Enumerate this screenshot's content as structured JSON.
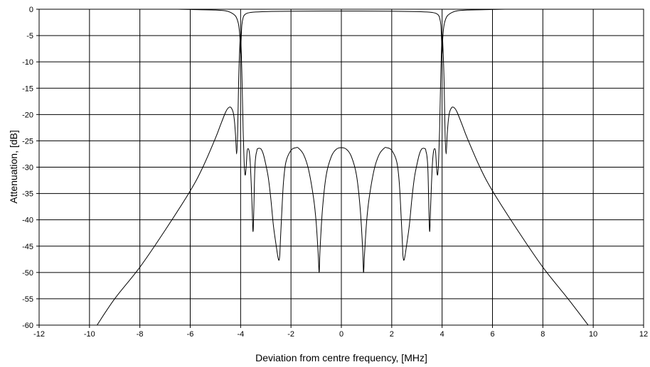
{
  "chart_data": {
    "type": "line",
    "title": "",
    "xlabel": "Deviation from centre frequency, [MHz]",
    "ylabel": "Attenuation, [dB]",
    "xlim": [
      -12,
      12
    ],
    "ylim": [
      -60,
      0
    ],
    "xticks": [
      "-12",
      "-10",
      "-8",
      "-6",
      "-4",
      "-2",
      "0",
      "2",
      "4",
      "6",
      "8",
      "10",
      "12"
    ],
    "yticks": [
      "0",
      "-5",
      "-10",
      "-15",
      "-20",
      "-25",
      "-30",
      "-35",
      "-40",
      "-45",
      "-50",
      "-55",
      "-60"
    ],
    "grid": true,
    "legend": "none",
    "line_color": "#000000",
    "series": [
      {
        "x": [
          -9.7,
          -9.0,
          -8.0,
          -7.0,
          -6.0,
          -5.5,
          -5.0,
          -4.8,
          -4.6,
          -4.5,
          -4.4,
          -4.3,
          -4.25,
          -4.2,
          -4.16,
          -4.12,
          -4.08,
          -4.04,
          -4.0,
          -3.95,
          -3.9,
          -3.86,
          -3.82,
          -3.78,
          -3.74,
          -3.7,
          -3.66,
          -3.62,
          -3.58,
          -3.54,
          -3.5,
          -3.44,
          -3.4,
          -3.36,
          -3.33,
          -3.2,
          -3.1,
          -3.0,
          -2.9,
          -2.8,
          -2.7,
          -2.6,
          -2.5,
          -2.45,
          -2.42,
          -2.38,
          -2.3,
          -2.2,
          -2.0,
          -1.8,
          -1.7,
          -1.5,
          -1.3,
          -1.1,
          -1.0,
          -0.92,
          -0.88,
          -0.85,
          -0.75,
          -0.6,
          -0.4,
          -0.2,
          0.0,
          0.2,
          0.4,
          0.6,
          0.75,
          0.85,
          0.88,
          0.92,
          1.0,
          1.1,
          1.3,
          1.5,
          1.7,
          1.8,
          2.0,
          2.2,
          2.3,
          2.38,
          2.42,
          2.45,
          2.5,
          2.6,
          2.7,
          2.8,
          2.9,
          3.0,
          3.1,
          3.2,
          3.33,
          3.36,
          3.4,
          3.44,
          3.5,
          3.54,
          3.58,
          3.62,
          3.66,
          3.7,
          3.74,
          3.78,
          3.82,
          3.86,
          3.9,
          3.95,
          4.0,
          4.04,
          4.08,
          4.12,
          4.16,
          4.2,
          4.25,
          4.3,
          4.4,
          4.5,
          4.6,
          4.8,
          5.0,
          5.5,
          6.0,
          7.0,
          8.0,
          9.0,
          9.8
        ],
        "y": [
          -60.0,
          -55.0,
          -49.0,
          -42.0,
          -34.5,
          -30.0,
          -24.5,
          -22.0,
          -19.6,
          -18.8,
          -18.6,
          -19.5,
          -21.0,
          -24.0,
          -27.5,
          -24.0,
          -14.0,
          -8.0,
          -5.0,
          -12.0,
          -23.0,
          -29.0,
          -31.5,
          -30.0,
          -27.0,
          -26.5,
          -27.0,
          -29.0,
          -33.0,
          -38.0,
          -42.0,
          -31.0,
          -28.0,
          -27.0,
          -26.5,
          -26.5,
          -27.5,
          -29.5,
          -32.0,
          -36.0,
          -41.0,
          -44.5,
          -47.5,
          -47.0,
          -44.0,
          -40.0,
          -33.0,
          -29.0,
          -26.8,
          -26.3,
          -26.4,
          -27.6,
          -30.5,
          -36.0,
          -40.5,
          -46.5,
          -50.0,
          -46.0,
          -38.0,
          -31.5,
          -28.0,
          -26.6,
          -26.3,
          -26.6,
          -28.0,
          -31.5,
          -38.0,
          -46.0,
          -50.0,
          -46.5,
          -40.5,
          -36.0,
          -30.5,
          -27.6,
          -26.4,
          -26.3,
          -26.8,
          -29.0,
          -33.0,
          -40.0,
          -44.0,
          -47.0,
          -47.5,
          -44.5,
          -41.0,
          -36.0,
          -32.0,
          -29.5,
          -27.5,
          -26.5,
          -26.5,
          -27.0,
          -28.0,
          -31.0,
          -42.0,
          -38.0,
          -33.0,
          -29.0,
          -27.0,
          -26.5,
          -27.0,
          -30.0,
          -31.5,
          -29.0,
          -23.0,
          -12.0,
          -5.0,
          -8.0,
          -14.0,
          -24.0,
          -27.5,
          -24.0,
          -21.0,
          -19.5,
          -18.6,
          -18.8,
          -19.6,
          -22.0,
          -24.5,
          -30.0,
          -34.5,
          -42.0,
          -49.0,
          -55.0,
          -60.0
        ]
      },
      {
        "x": [
          -6.5,
          -6.0,
          -5.0,
          -4.6,
          -4.4,
          -4.2,
          -4.1,
          -4.05,
          -4.02,
          -4.0,
          -3.98,
          -3.95,
          -3.9,
          -3.85,
          -3.8,
          -3.7,
          -3.5,
          -3.0,
          -2.0,
          0.0,
          2.0,
          3.0,
          3.5,
          3.7,
          3.8,
          3.85,
          3.9,
          3.95,
          3.98,
          4.0,
          4.02,
          4.05,
          4.1,
          4.2,
          4.4,
          4.6,
          5.0,
          6.0,
          6.5
        ],
        "y": [
          0.0,
          -0.05,
          -0.15,
          -0.3,
          -0.6,
          -1.3,
          -2.5,
          -4.0,
          -6.0,
          -8.5,
          -6.0,
          -3.0,
          -1.6,
          -1.1,
          -0.9,
          -0.7,
          -0.55,
          -0.45,
          -0.38,
          -0.35,
          -0.38,
          -0.45,
          -0.55,
          -0.7,
          -0.9,
          -1.1,
          -1.6,
          -3.0,
          -6.0,
          -8.5,
          -6.0,
          -4.0,
          -2.5,
          -1.3,
          -0.6,
          -0.3,
          -0.15,
          -0.05,
          0.0
        ]
      }
    ]
  }
}
